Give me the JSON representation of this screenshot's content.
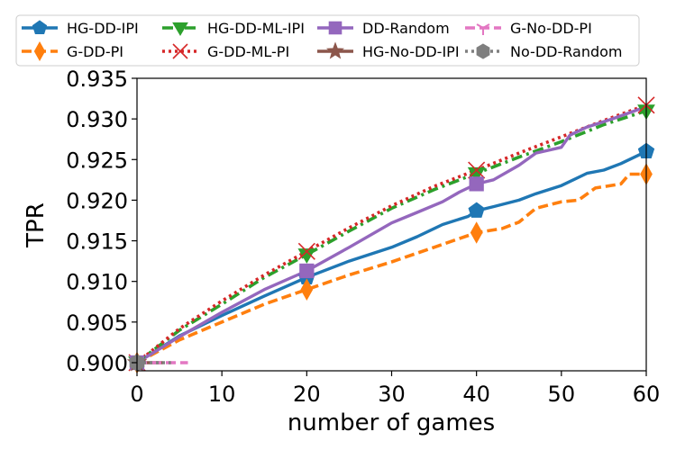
{
  "chart_data": {
    "type": "line",
    "xlabel": "number of games",
    "ylabel": "TPR",
    "xlim": [
      0,
      60
    ],
    "ylim": [
      0.899,
      0.935
    ],
    "xticks": [
      0,
      10,
      20,
      30,
      40,
      50,
      60
    ],
    "yticks": [
      "0.900",
      "0.905",
      "0.910",
      "0.915",
      "0.920",
      "0.925",
      "0.930",
      "0.935"
    ],
    "grid": false,
    "legend_position": "top",
    "series": [
      {
        "name": "HG-DD-IPI",
        "color": "#1f77b4",
        "dash": "solid",
        "marker": "pentagon",
        "x": [
          0,
          5,
          10,
          15,
          20,
          25,
          30,
          33,
          36,
          39,
          40,
          42,
          45,
          47,
          50,
          53,
          55,
          57,
          59,
          60
        ],
        "y": [
          0.9,
          0.9033,
          0.9058,
          0.9082,
          0.9105,
          0.9125,
          0.9142,
          0.9155,
          0.917,
          0.918,
          0.9187,
          0.9192,
          0.92,
          0.9208,
          0.9218,
          0.9233,
          0.9237,
          0.9245,
          0.9255,
          0.926
        ],
        "markers_at": [
          0,
          20,
          40,
          60
        ]
      },
      {
        "name": "G-DD-PI",
        "color": "#ff7f0e",
        "dash": "dashed",
        "marker": "thin_diamond",
        "x": [
          0,
          5,
          10,
          15,
          20,
          25,
          30,
          35,
          40,
          43,
          45,
          47,
          50,
          52,
          54,
          57,
          58,
          60
        ],
        "y": [
          0.9,
          0.9028,
          0.905,
          0.9072,
          0.909,
          0.9108,
          0.9124,
          0.9142,
          0.916,
          0.9165,
          0.9173,
          0.919,
          0.9198,
          0.92,
          0.9215,
          0.922,
          0.9232,
          0.9232
        ],
        "markers_at": [
          0,
          20,
          40,
          60
        ]
      },
      {
        "name": "HG-DD-ML-IPI",
        "color": "#2ca02c",
        "dash": "dashdot",
        "marker": "triangle_down",
        "x": [
          0,
          5,
          10,
          15,
          20,
          25,
          30,
          35,
          40,
          45,
          50,
          55,
          60
        ],
        "y": [
          0.9,
          0.904,
          0.9072,
          0.9105,
          0.9133,
          0.9162,
          0.919,
          0.9213,
          0.9233,
          0.9253,
          0.9272,
          0.9293,
          0.931
        ],
        "markers_at": [
          0,
          20,
          40,
          60
        ]
      },
      {
        "name": "G-DD-ML-PI",
        "color": "#d62728",
        "dash": "dotted",
        "marker": "x",
        "x": [
          0,
          5,
          10,
          15,
          20,
          25,
          30,
          35,
          40,
          45,
          50,
          55,
          60
        ],
        "y": [
          0.9,
          0.9042,
          0.9076,
          0.9108,
          0.9137,
          0.9166,
          0.9193,
          0.9217,
          0.9237,
          0.9258,
          0.9278,
          0.9298,
          0.9317
        ],
        "markers_at": [
          0,
          20,
          40,
          60
        ]
      },
      {
        "name": "DD-Random",
        "color": "#9467bd",
        "dash": "solid",
        "marker": "square",
        "x": [
          0,
          5,
          10,
          15,
          20,
          25,
          30,
          33,
          36,
          38,
          40,
          42,
          45,
          47,
          50,
          51,
          53,
          56,
          60
        ],
        "y": [
          0.9,
          0.9032,
          0.9062,
          0.909,
          0.9113,
          0.9142,
          0.9172,
          0.9185,
          0.9198,
          0.921,
          0.922,
          0.9225,
          0.9243,
          0.9258,
          0.9265,
          0.928,
          0.929,
          0.93,
          0.9315
        ],
        "markers_at": [
          0,
          20,
          40
        ]
      },
      {
        "name": "HG-No-DD-IPI",
        "color": "#8c564b",
        "dash": "solid",
        "marker": "star",
        "x": [
          0,
          3
        ],
        "y": [
          0.9,
          0.9
        ],
        "markers_at": [
          0
        ]
      },
      {
        "name": "G-No-DD-PI",
        "color": "#e377c2",
        "dash": "dashed",
        "marker": "tri_down",
        "x": [
          0,
          6
        ],
        "y": [
          0.9,
          0.9
        ],
        "markers_at": [
          0
        ]
      },
      {
        "name": "No-DD-Random",
        "color": "#7f7f7f",
        "dash": "dotted",
        "marker": "hexagon",
        "x": [
          0,
          4
        ],
        "y": [
          0.9,
          0.9
        ],
        "markers_at": [
          0
        ]
      }
    ]
  }
}
